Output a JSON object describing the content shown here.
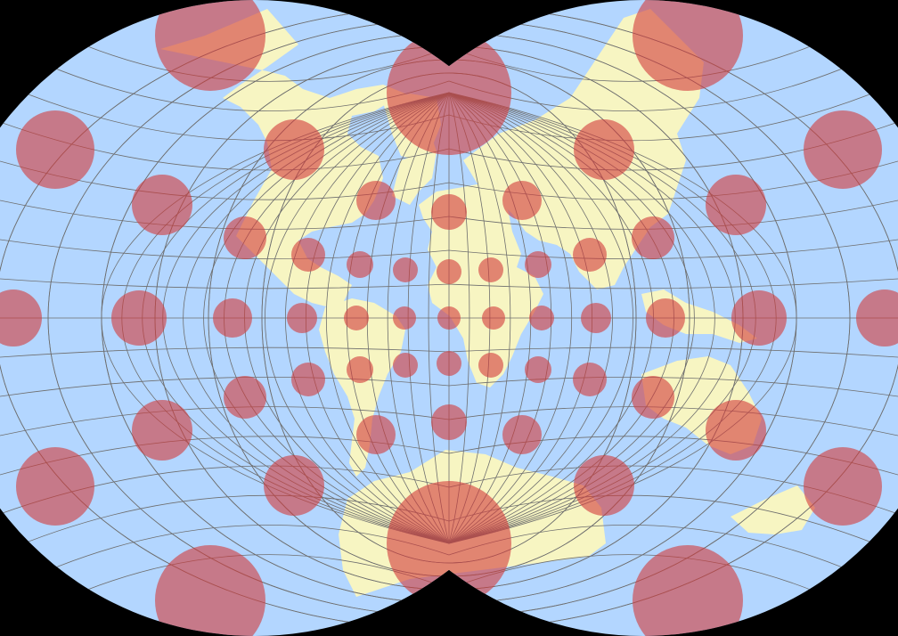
{
  "map": {
    "projection_type": "interrupted conformal world map with Tissot indicatrices",
    "colors": {
      "background": "#000000",
      "ocean": "#b3d6ff",
      "land": "#f7f5c2",
      "graticule": "#6e6e6e",
      "indicatrix_fill": "#d23a3a",
      "indicatrix_opacity": 0.6
    },
    "graticule": {
      "meridian_step_deg": 10,
      "parallel_step_deg": 10
    },
    "tissot_indicatrices": {
      "present": true,
      "count_shown": 55
    },
    "labels": []
  }
}
